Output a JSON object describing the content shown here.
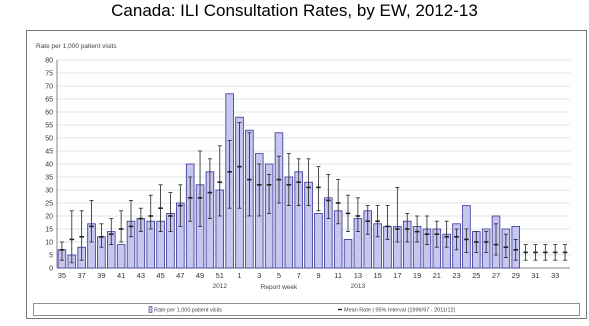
{
  "chart_data": {
    "type": "bar",
    "title": "Canada: ILI Consultation Rates, by EW, 2012-13",
    "ylabel": "Rate per 1,000 patient visits",
    "xlabel": "Report week",
    "year_labels": [
      "2012",
      "2013"
    ],
    "ylim": [
      0,
      80
    ],
    "yticks": [
      0,
      5,
      10,
      15,
      20,
      25,
      30,
      35,
      40,
      45,
      50,
      55,
      60,
      65,
      70,
      75,
      80
    ],
    "grid": true,
    "weeks": [
      35,
      36,
      37,
      38,
      39,
      40,
      41,
      42,
      43,
      44,
      45,
      46,
      47,
      48,
      49,
      50,
      51,
      52,
      1,
      2,
      3,
      4,
      5,
      6,
      7,
      8,
      9,
      10,
      11,
      12,
      13,
      14,
      15,
      16,
      17,
      18,
      19,
      20,
      21,
      22,
      23,
      24,
      25,
      26,
      27,
      28,
      29,
      30,
      31,
      32,
      33,
      34
    ],
    "x_tick_labels": [
      "35",
      "37",
      "39",
      "41",
      "43",
      "45",
      "47",
      "49",
      "51",
      "1",
      "3",
      "5",
      "7",
      "9",
      "11",
      "13",
      "15",
      "17",
      "19",
      "21",
      "23",
      "25",
      "27",
      "29",
      "31",
      "33"
    ],
    "series": [
      {
        "name": "Rate per 1,000 patient visits",
        "values": [
          7,
          5,
          8,
          17,
          12,
          14,
          9,
          18,
          19,
          18,
          18,
          21,
          25,
          40,
          32,
          37,
          30,
          67,
          58,
          53,
          44,
          40,
          52,
          35,
          37,
          33,
          21,
          27,
          22,
          11,
          19,
          22,
          17,
          16,
          16,
          18,
          16,
          15,
          15,
          13,
          17,
          24,
          14,
          15,
          20,
          15,
          16,
          null,
          null,
          null,
          null,
          null
        ]
      },
      {
        "name": "Mean Rate | 95% Interval (1996/97 - 2011/12)",
        "mean": [
          7,
          11,
          12,
          16,
          12,
          13,
          15,
          16,
          19,
          20,
          23,
          20,
          24,
          27,
          27,
          29,
          33,
          37,
          39,
          34,
          32,
          32,
          34,
          32,
          33,
          31,
          31,
          26,
          25,
          21,
          20,
          18,
          18,
          16,
          15,
          15,
          14,
          13,
          13,
          12,
          12,
          11,
          10,
          10,
          9,
          8,
          7,
          6,
          6,
          6,
          6,
          6
        ],
        "low": [
          3,
          2,
          3,
          10,
          8,
          9,
          10,
          12,
          14,
          15,
          14,
          14,
          16,
          18,
          16,
          19,
          20,
          23,
          23,
          20,
          20,
          21,
          25,
          24,
          24,
          24,
          22,
          19,
          17,
          14,
          14,
          13,
          12,
          11,
          10,
          10,
          10,
          9,
          8,
          8,
          7,
          6,
          6,
          6,
          5,
          4,
          3,
          3,
          3,
          3,
          3,
          3
        ],
        "high": [
          10,
          22,
          22,
          26,
          17,
          19,
          22,
          26,
          23,
          28,
          32,
          29,
          32,
          35,
          45,
          42,
          47,
          49,
          56,
          52,
          40,
          36,
          43,
          44,
          42,
          42,
          39,
          36,
          34,
          28,
          27,
          24,
          24,
          24,
          31,
          21,
          20,
          20,
          18,
          18,
          15,
          15,
          14,
          14,
          17,
          13,
          11,
          9,
          9,
          9,
          9,
          9
        ]
      }
    ],
    "colors": {
      "bar_fill": "#c7c6ef",
      "bar_stroke": "#34339a",
      "error_bar": "#222222",
      "grid": "#c8c8c8"
    },
    "legend_position": "bottom"
  }
}
